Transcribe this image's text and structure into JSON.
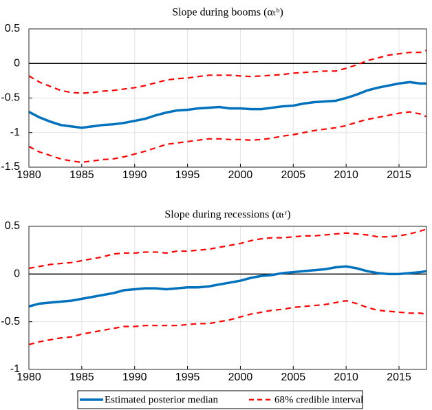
{
  "chart_data": [
    {
      "type": "line",
      "title": "Slope during booms (αₜᵇ)",
      "x": [
        1980,
        1981,
        1982,
        1983,
        1984,
        1985,
        1986,
        1987,
        1988,
        1989,
        1990,
        1991,
        1992,
        1993,
        1994,
        1995,
        1996,
        1997,
        1998,
        1999,
        2000,
        2001,
        2002,
        2003,
        2004,
        2005,
        2006,
        2007,
        2008,
        2009,
        2010,
        2011,
        2012,
        2013,
        2014,
        2015,
        2016,
        2017,
        2017.6
      ],
      "series": [
        {
          "name": "Estimated posterior median",
          "color": "#0072bd",
          "style": "solid",
          "values": [
            -0.7,
            -0.78,
            -0.84,
            -0.89,
            -0.91,
            -0.93,
            -0.91,
            -0.89,
            -0.88,
            -0.86,
            -0.83,
            -0.8,
            -0.75,
            -0.71,
            -0.68,
            -0.67,
            -0.65,
            -0.64,
            -0.63,
            -0.65,
            -0.65,
            -0.66,
            -0.66,
            -0.64,
            -0.62,
            -0.61,
            -0.58,
            -0.56,
            -0.55,
            -0.54,
            -0.5,
            -0.45,
            -0.39,
            -0.35,
            -0.32,
            -0.29,
            -0.27,
            -0.29,
            -0.29
          ]
        },
        {
          "name": "68% credible interval",
          "color": "#ff0000",
          "style": "dashed",
          "values": [
            -0.18,
            -0.27,
            -0.33,
            -0.39,
            -0.42,
            -0.43,
            -0.42,
            -0.4,
            -0.39,
            -0.37,
            -0.35,
            -0.32,
            -0.28,
            -0.24,
            -0.22,
            -0.21,
            -0.19,
            -0.17,
            -0.17,
            -0.17,
            -0.18,
            -0.19,
            -0.18,
            -0.17,
            -0.16,
            -0.14,
            -0.13,
            -0.12,
            -0.11,
            -0.11,
            -0.07,
            -0.02,
            0.04,
            0.08,
            0.12,
            0.14,
            0.16,
            0.16,
            0.19
          ]
        },
        {
          "color": "#ff0000",
          "style": "dashed",
          "values": [
            -1.2,
            -1.28,
            -1.33,
            -1.38,
            -1.41,
            -1.43,
            -1.41,
            -1.39,
            -1.38,
            -1.35,
            -1.31,
            -1.27,
            -1.22,
            -1.17,
            -1.15,
            -1.13,
            -1.11,
            -1.09,
            -1.09,
            -1.1,
            -1.1,
            -1.11,
            -1.1,
            -1.08,
            -1.05,
            -1.03,
            -1.0,
            -0.97,
            -0.95,
            -0.93,
            -0.9,
            -0.85,
            -0.81,
            -0.78,
            -0.75,
            -0.72,
            -0.7,
            -0.73,
            -0.77
          ]
        }
      ],
      "xlim": [
        1980,
        2017.6
      ],
      "xticks": [
        1980,
        1985,
        1990,
        1995,
        2000,
        2005,
        2010,
        2015
      ],
      "ylim": [
        -1.5,
        0.5
      ],
      "yticks": [
        -1.5,
        -1,
        -0.5,
        0,
        0.5
      ],
      "hline": 0,
      "grid": true
    },
    {
      "type": "line",
      "title": "Slope during recessions (αₜʳ)",
      "x": [
        1980,
        1981,
        1982,
        1983,
        1984,
        1985,
        1986,
        1987,
        1988,
        1989,
        1990,
        1991,
        1992,
        1993,
        1994,
        1995,
        1996,
        1997,
        1998,
        1999,
        2000,
        2001,
        2002,
        2003,
        2004,
        2005,
        2006,
        2007,
        2008,
        2009,
        2010,
        2011,
        2012,
        2013,
        2014,
        2015,
        2016,
        2017,
        2017.6
      ],
      "series": [
        {
          "color": "#0072bd",
          "style": "solid",
          "values": [
            -0.34,
            -0.31,
            -0.3,
            -0.29,
            -0.28,
            -0.26,
            -0.24,
            -0.22,
            -0.2,
            -0.17,
            -0.16,
            -0.15,
            -0.15,
            -0.16,
            -0.15,
            -0.14,
            -0.14,
            -0.13,
            -0.11,
            -0.09,
            -0.07,
            -0.04,
            -0.02,
            -0.01,
            0.01,
            0.02,
            0.03,
            0.04,
            0.05,
            0.07,
            0.08,
            0.06,
            0.03,
            0.01,
            0.0,
            0.0,
            0.01,
            0.02,
            0.03
          ]
        },
        {
          "color": "#ff0000",
          "style": "dashed",
          "values": [
            0.06,
            0.08,
            0.1,
            0.11,
            0.12,
            0.14,
            0.16,
            0.18,
            0.21,
            0.22,
            0.22,
            0.23,
            0.23,
            0.22,
            0.24,
            0.24,
            0.25,
            0.26,
            0.28,
            0.3,
            0.32,
            0.35,
            0.37,
            0.38,
            0.38,
            0.39,
            0.4,
            0.4,
            0.41,
            0.42,
            0.43,
            0.42,
            0.41,
            0.39,
            0.39,
            0.4,
            0.42,
            0.45,
            0.47
          ]
        },
        {
          "color": "#ff0000",
          "style": "dashed",
          "values": [
            -0.74,
            -0.71,
            -0.69,
            -0.67,
            -0.66,
            -0.63,
            -0.61,
            -0.59,
            -0.57,
            -0.55,
            -0.55,
            -0.54,
            -0.54,
            -0.54,
            -0.54,
            -0.53,
            -0.52,
            -0.52,
            -0.5,
            -0.48,
            -0.45,
            -0.42,
            -0.4,
            -0.38,
            -0.37,
            -0.35,
            -0.34,
            -0.33,
            -0.32,
            -0.3,
            -0.28,
            -0.31,
            -0.35,
            -0.38,
            -0.39,
            -0.4,
            -0.41,
            -0.41,
            -0.42
          ]
        }
      ],
      "xlim": [
        1980,
        2017.6
      ],
      "xticks": [
        1980,
        1985,
        1990,
        1995,
        2000,
        2005,
        2010,
        2015
      ],
      "ylim": [
        -1,
        0.5
      ],
      "yticks": [
        -1,
        -0.5,
        0,
        0.5
      ],
      "hline": 0,
      "grid": true
    }
  ]
}
